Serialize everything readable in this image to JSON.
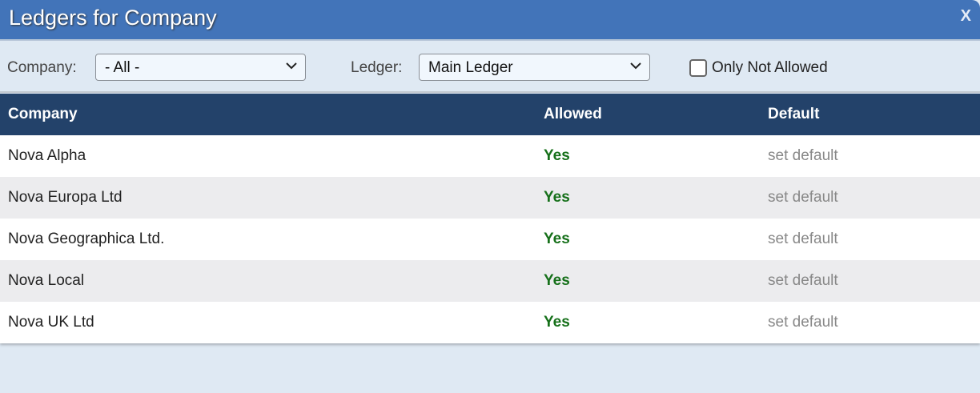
{
  "window": {
    "title": "Ledgers for Company",
    "close_label": "X"
  },
  "filters": {
    "company_label": "Company:",
    "company_value": "- All -",
    "ledger_label": "Ledger:",
    "ledger_value": "Main Ledger",
    "only_not_allowed_label": "Only Not Allowed",
    "only_not_allowed_checked": false
  },
  "table": {
    "headers": [
      "Company",
      "Allowed",
      "Default"
    ],
    "rows": [
      {
        "company": "Nova Alpha",
        "allowed": "Yes",
        "default": "set default"
      },
      {
        "company": "Nova Europa Ltd",
        "allowed": "Yes",
        "default": "set default"
      },
      {
        "company": "Nova Geographica Ltd.",
        "allowed": "Yes",
        "default": "set default"
      },
      {
        "company": "Nova Local",
        "allowed": "Yes",
        "default": "set default"
      },
      {
        "company": "Nova UK Ltd",
        "allowed": "Yes",
        "default": "set default"
      }
    ]
  },
  "colors": {
    "title_bar": "#4274b9",
    "header": "#23426a",
    "allowed_yes": "#16701a",
    "background": "#dfe9f3"
  }
}
